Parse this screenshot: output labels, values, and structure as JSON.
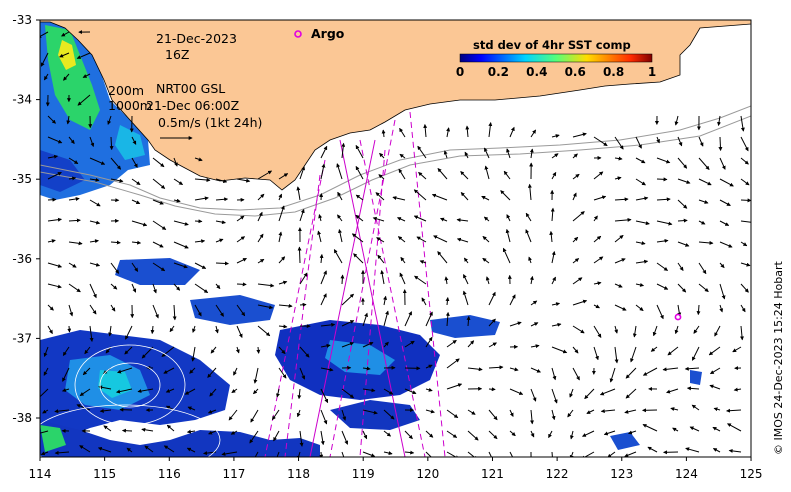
{
  "map": {
    "date": "21-Dec-2023",
    "hour": "16Z",
    "depth_legend": {
      "line1": "200m",
      "line2": "1000m"
    },
    "product": "NRT00 GSL",
    "altimetry_time": "21-Dec 06:00Z",
    "arrow_scale": "0.5m/s (1kt 24h)",
    "argo_label": "Argo",
    "colorbar": {
      "title": "std dev of 4hr SST comp",
      "ticks": [
        "0",
        "0.2",
        "0.4",
        "0.6",
        "0.8",
        "1"
      ]
    },
    "x_ticks": [
      "114",
      "115",
      "116",
      "117",
      "118",
      "119",
      "120",
      "121",
      "122",
      "123",
      "124",
      "125"
    ],
    "y_ticks": [
      "-33",
      "-34",
      "-35",
      "-36",
      "-37",
      "-38"
    ],
    "credit": "© IMOS 24-Dec-2023 15:24 Hobart",
    "colors": {
      "land": "#fbc795",
      "argo": "#e000e0",
      "track": "#cc00cc",
      "isobath": "#9a9a9a"
    }
  }
}
